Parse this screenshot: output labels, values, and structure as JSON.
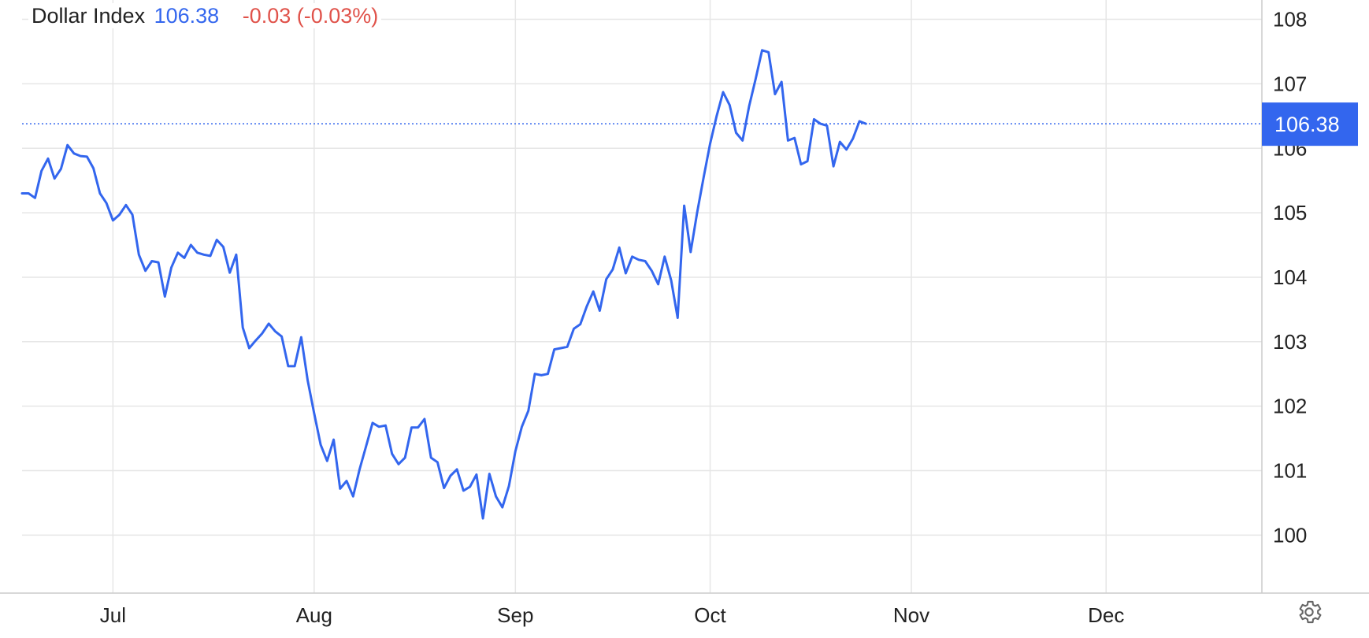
{
  "legend": {
    "name": "Dollar Index",
    "last": "106.38",
    "change": "-0.03 (-0.03%)"
  },
  "colors": {
    "line": "#3366ee",
    "change_negative": "#e0524a",
    "grid": "#e6e6e6"
  },
  "settings_icon": "gear-icon",
  "chart_data": {
    "type": "line",
    "title": "Dollar Index",
    "xlabel": "",
    "ylabel": "",
    "ylim": [
      99.1,
      108.3
    ],
    "yticks": [
      100,
      101,
      102,
      103,
      104,
      105,
      106,
      107,
      108
    ],
    "x_tick_labels": [
      {
        "label": "Jul",
        "date": "2022-07-01"
      },
      {
        "label": "Aug",
        "date": "2022-08-01"
      },
      {
        "label": "Sep",
        "date": "2022-09-01"
      },
      {
        "label": "Oct",
        "date": "2022-10-01"
      },
      {
        "label": "Nov",
        "date": "2022-11-01"
      },
      {
        "label": "Dec",
        "date": "2022-12-01"
      }
    ],
    "xlim": [
      "2022-06-17",
      "2022-12-25"
    ],
    "last_value": 106.38,
    "grid": true,
    "series": [
      {
        "values": [
          [
            "2022-06-17",
            105.3
          ],
          [
            "2022-06-18",
            105.3
          ],
          [
            "2022-06-19",
            105.23
          ],
          [
            "2022-06-20",
            105.65
          ],
          [
            "2022-06-21",
            105.84
          ],
          [
            "2022-06-22",
            105.53
          ],
          [
            "2022-06-23",
            105.68
          ],
          [
            "2022-06-24",
            106.05
          ],
          [
            "2022-06-25",
            105.92
          ],
          [
            "2022-06-26",
            105.88
          ],
          [
            "2022-06-27",
            105.87
          ],
          [
            "2022-06-28",
            105.69
          ],
          [
            "2022-06-29",
            105.3
          ],
          [
            "2022-06-30",
            105.15
          ],
          [
            "2022-07-01",
            104.88
          ],
          [
            "2022-07-02",
            104.97
          ],
          [
            "2022-07-03",
            105.12
          ],
          [
            "2022-07-04",
            104.97
          ],
          [
            "2022-07-05",
            104.35
          ],
          [
            "2022-07-06",
            104.1
          ],
          [
            "2022-07-07",
            104.25
          ],
          [
            "2022-07-08",
            104.23
          ],
          [
            "2022-07-09",
            103.7
          ],
          [
            "2022-07-10",
            104.15
          ],
          [
            "2022-07-11",
            104.38
          ],
          [
            "2022-07-12",
            104.3
          ],
          [
            "2022-07-13",
            104.5
          ],
          [
            "2022-07-14",
            104.38
          ],
          [
            "2022-07-15",
            104.35
          ],
          [
            "2022-07-16",
            104.33
          ],
          [
            "2022-07-17",
            104.58
          ],
          [
            "2022-07-18",
            104.47
          ],
          [
            "2022-07-19",
            104.07
          ],
          [
            "2022-07-20",
            104.35
          ],
          [
            "2022-07-21",
            103.22
          ],
          [
            "2022-07-22",
            102.9
          ],
          [
            "2022-07-23",
            103.02
          ],
          [
            "2022-07-24",
            103.13
          ],
          [
            "2022-07-25",
            103.28
          ],
          [
            "2022-07-26",
            103.16
          ],
          [
            "2022-07-27",
            103.08
          ],
          [
            "2022-07-28",
            102.62
          ],
          [
            "2022-07-29",
            102.62
          ],
          [
            "2022-07-30",
            103.07
          ],
          [
            "2022-07-31",
            102.4
          ],
          [
            "2022-08-01",
            101.89
          ],
          [
            "2022-08-02",
            101.4
          ],
          [
            "2022-08-03",
            101.15
          ],
          [
            "2022-08-04",
            101.48
          ],
          [
            "2022-08-05",
            100.72
          ],
          [
            "2022-08-06",
            100.84
          ],
          [
            "2022-08-07",
            100.6
          ],
          [
            "2022-08-08",
            101.02
          ],
          [
            "2022-08-09",
            101.38
          ],
          [
            "2022-08-10",
            101.74
          ],
          [
            "2022-08-11",
            101.68
          ],
          [
            "2022-08-12",
            101.7
          ],
          [
            "2022-08-13",
            101.26
          ],
          [
            "2022-08-14",
            101.1
          ],
          [
            "2022-08-15",
            101.2
          ],
          [
            "2022-08-16",
            101.67
          ],
          [
            "2022-08-17",
            101.67
          ],
          [
            "2022-08-18",
            101.8
          ],
          [
            "2022-08-19",
            101.2
          ],
          [
            "2022-08-20",
            101.13
          ],
          [
            "2022-08-21",
            100.73
          ],
          [
            "2022-08-22",
            100.92
          ],
          [
            "2022-08-23",
            101.02
          ],
          [
            "2022-08-24",
            100.69
          ],
          [
            "2022-08-25",
            100.75
          ],
          [
            "2022-08-26",
            100.94
          ],
          [
            "2022-08-27",
            100.26
          ],
          [
            "2022-08-28",
            100.95
          ],
          [
            "2022-08-29",
            100.6
          ],
          [
            "2022-08-30",
            100.43
          ],
          [
            "2022-08-31",
            100.76
          ],
          [
            "2022-09-01",
            101.3
          ],
          [
            "2022-09-02",
            101.68
          ],
          [
            "2022-09-03",
            101.93
          ],
          [
            "2022-09-04",
            102.5
          ],
          [
            "2022-09-05",
            102.48
          ],
          [
            "2022-09-06",
            102.5
          ],
          [
            "2022-09-07",
            102.88
          ],
          [
            "2022-09-08",
            102.9
          ],
          [
            "2022-09-09",
            102.92
          ],
          [
            "2022-09-10",
            103.2
          ],
          [
            "2022-09-11",
            103.27
          ],
          [
            "2022-09-12",
            103.55
          ],
          [
            "2022-09-13",
            103.78
          ],
          [
            "2022-09-14",
            103.48
          ],
          [
            "2022-09-15",
            103.97
          ],
          [
            "2022-09-16",
            104.12
          ],
          [
            "2022-09-17",
            104.46
          ],
          [
            "2022-09-18",
            104.06
          ],
          [
            "2022-09-19",
            104.32
          ],
          [
            "2022-09-20",
            104.27
          ],
          [
            "2022-09-21",
            104.25
          ],
          [
            "2022-09-22",
            104.1
          ],
          [
            "2022-09-23",
            103.89
          ],
          [
            "2022-09-24",
            104.32
          ],
          [
            "2022-09-25",
            103.95
          ],
          [
            "2022-09-26",
            103.37
          ],
          [
            "2022-09-27",
            105.11
          ],
          [
            "2022-09-28",
            104.39
          ],
          [
            "2022-09-29",
            105.0
          ],
          [
            "2022-09-30",
            105.55
          ],
          [
            "2022-10-01",
            106.07
          ],
          [
            "2022-10-02",
            106.5
          ],
          [
            "2022-10-03",
            106.87
          ],
          [
            "2022-10-04",
            106.67
          ],
          [
            "2022-10-05",
            106.24
          ],
          [
            "2022-10-06",
            106.12
          ],
          [
            "2022-10-07",
            106.65
          ],
          [
            "2022-10-08",
            107.07
          ],
          [
            "2022-10-09",
            107.52
          ],
          [
            "2022-10-10",
            107.49
          ],
          [
            "2022-10-11",
            106.84
          ],
          [
            "2022-10-12",
            107.03
          ],
          [
            "2022-10-13",
            106.12
          ],
          [
            "2022-10-14",
            106.16
          ],
          [
            "2022-10-15",
            105.75
          ],
          [
            "2022-10-16",
            105.8
          ],
          [
            "2022-10-17",
            106.45
          ],
          [
            "2022-10-18",
            106.38
          ],
          [
            "2022-10-19",
            106.35
          ],
          [
            "2022-10-20",
            105.72
          ],
          [
            "2022-10-21",
            106.1
          ],
          [
            "2022-10-22",
            105.98
          ],
          [
            "2022-10-23",
            106.15
          ],
          [
            "2022-10-24",
            106.42
          ],
          [
            "2022-10-25",
            106.38
          ]
        ]
      }
    ]
  }
}
